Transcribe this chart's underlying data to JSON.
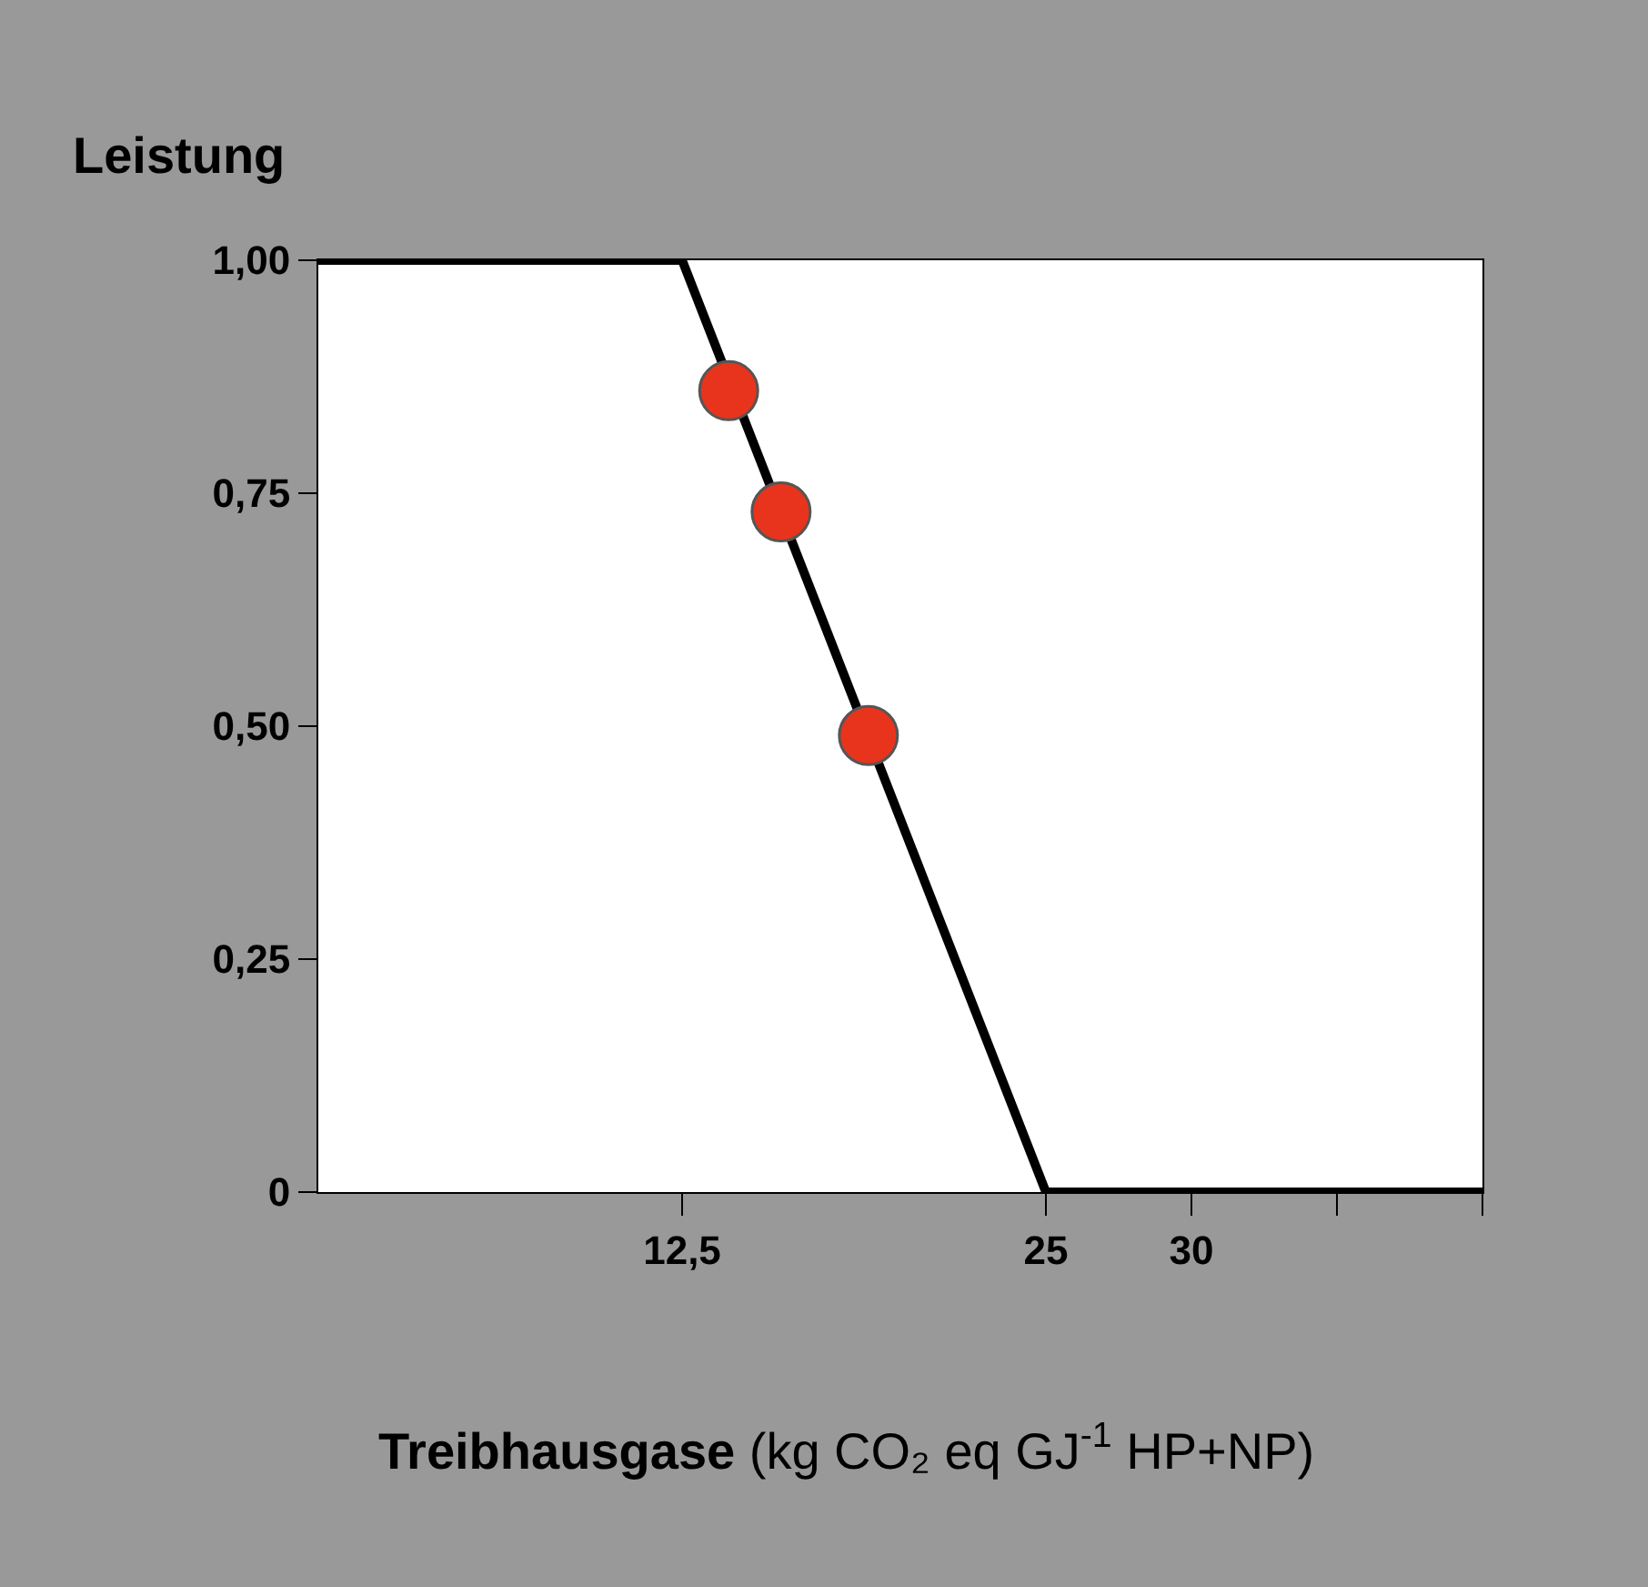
{
  "chart_data": {
    "type": "line",
    "ylabel": "Leistung",
    "xlabel": "Treibhausgase (kg CO₂ eq GJ$^{-1}$ HP+NP)",
    "xlim": [
      0,
      40
    ],
    "xticks": [
      {
        "value": 12.5,
        "label": "12,5"
      },
      25,
      30,
      {
        "value": 35,
        "label": null
      },
      {
        "value": 40,
        "label": null
      }
    ],
    "ylim": [
      0,
      1
    ],
    "yticks": [
      0,
      {
        "value": 0.25,
        "label": "0,25"
      },
      {
        "value": 0.5,
        "label": "0,50"
      },
      {
        "value": 0.75,
        "label": "0,75"
      },
      {
        "value": 1,
        "label": "1,00"
      }
    ],
    "series": [
      {
        "color": "#000000",
        "marker": "none",
        "line_style": "solid",
        "x": [
          0,
          12.5,
          25,
          40
        ],
        "values": [
          1,
          1,
          0,
          0
        ]
      },
      {
        "type": "scatter",
        "color": "#e8341c",
        "marker": "circle",
        "x": [
          14.1,
          15.9,
          18.9
        ],
        "values": [
          0.86,
          0.73,
          0.49
        ]
      }
    ]
  }
}
